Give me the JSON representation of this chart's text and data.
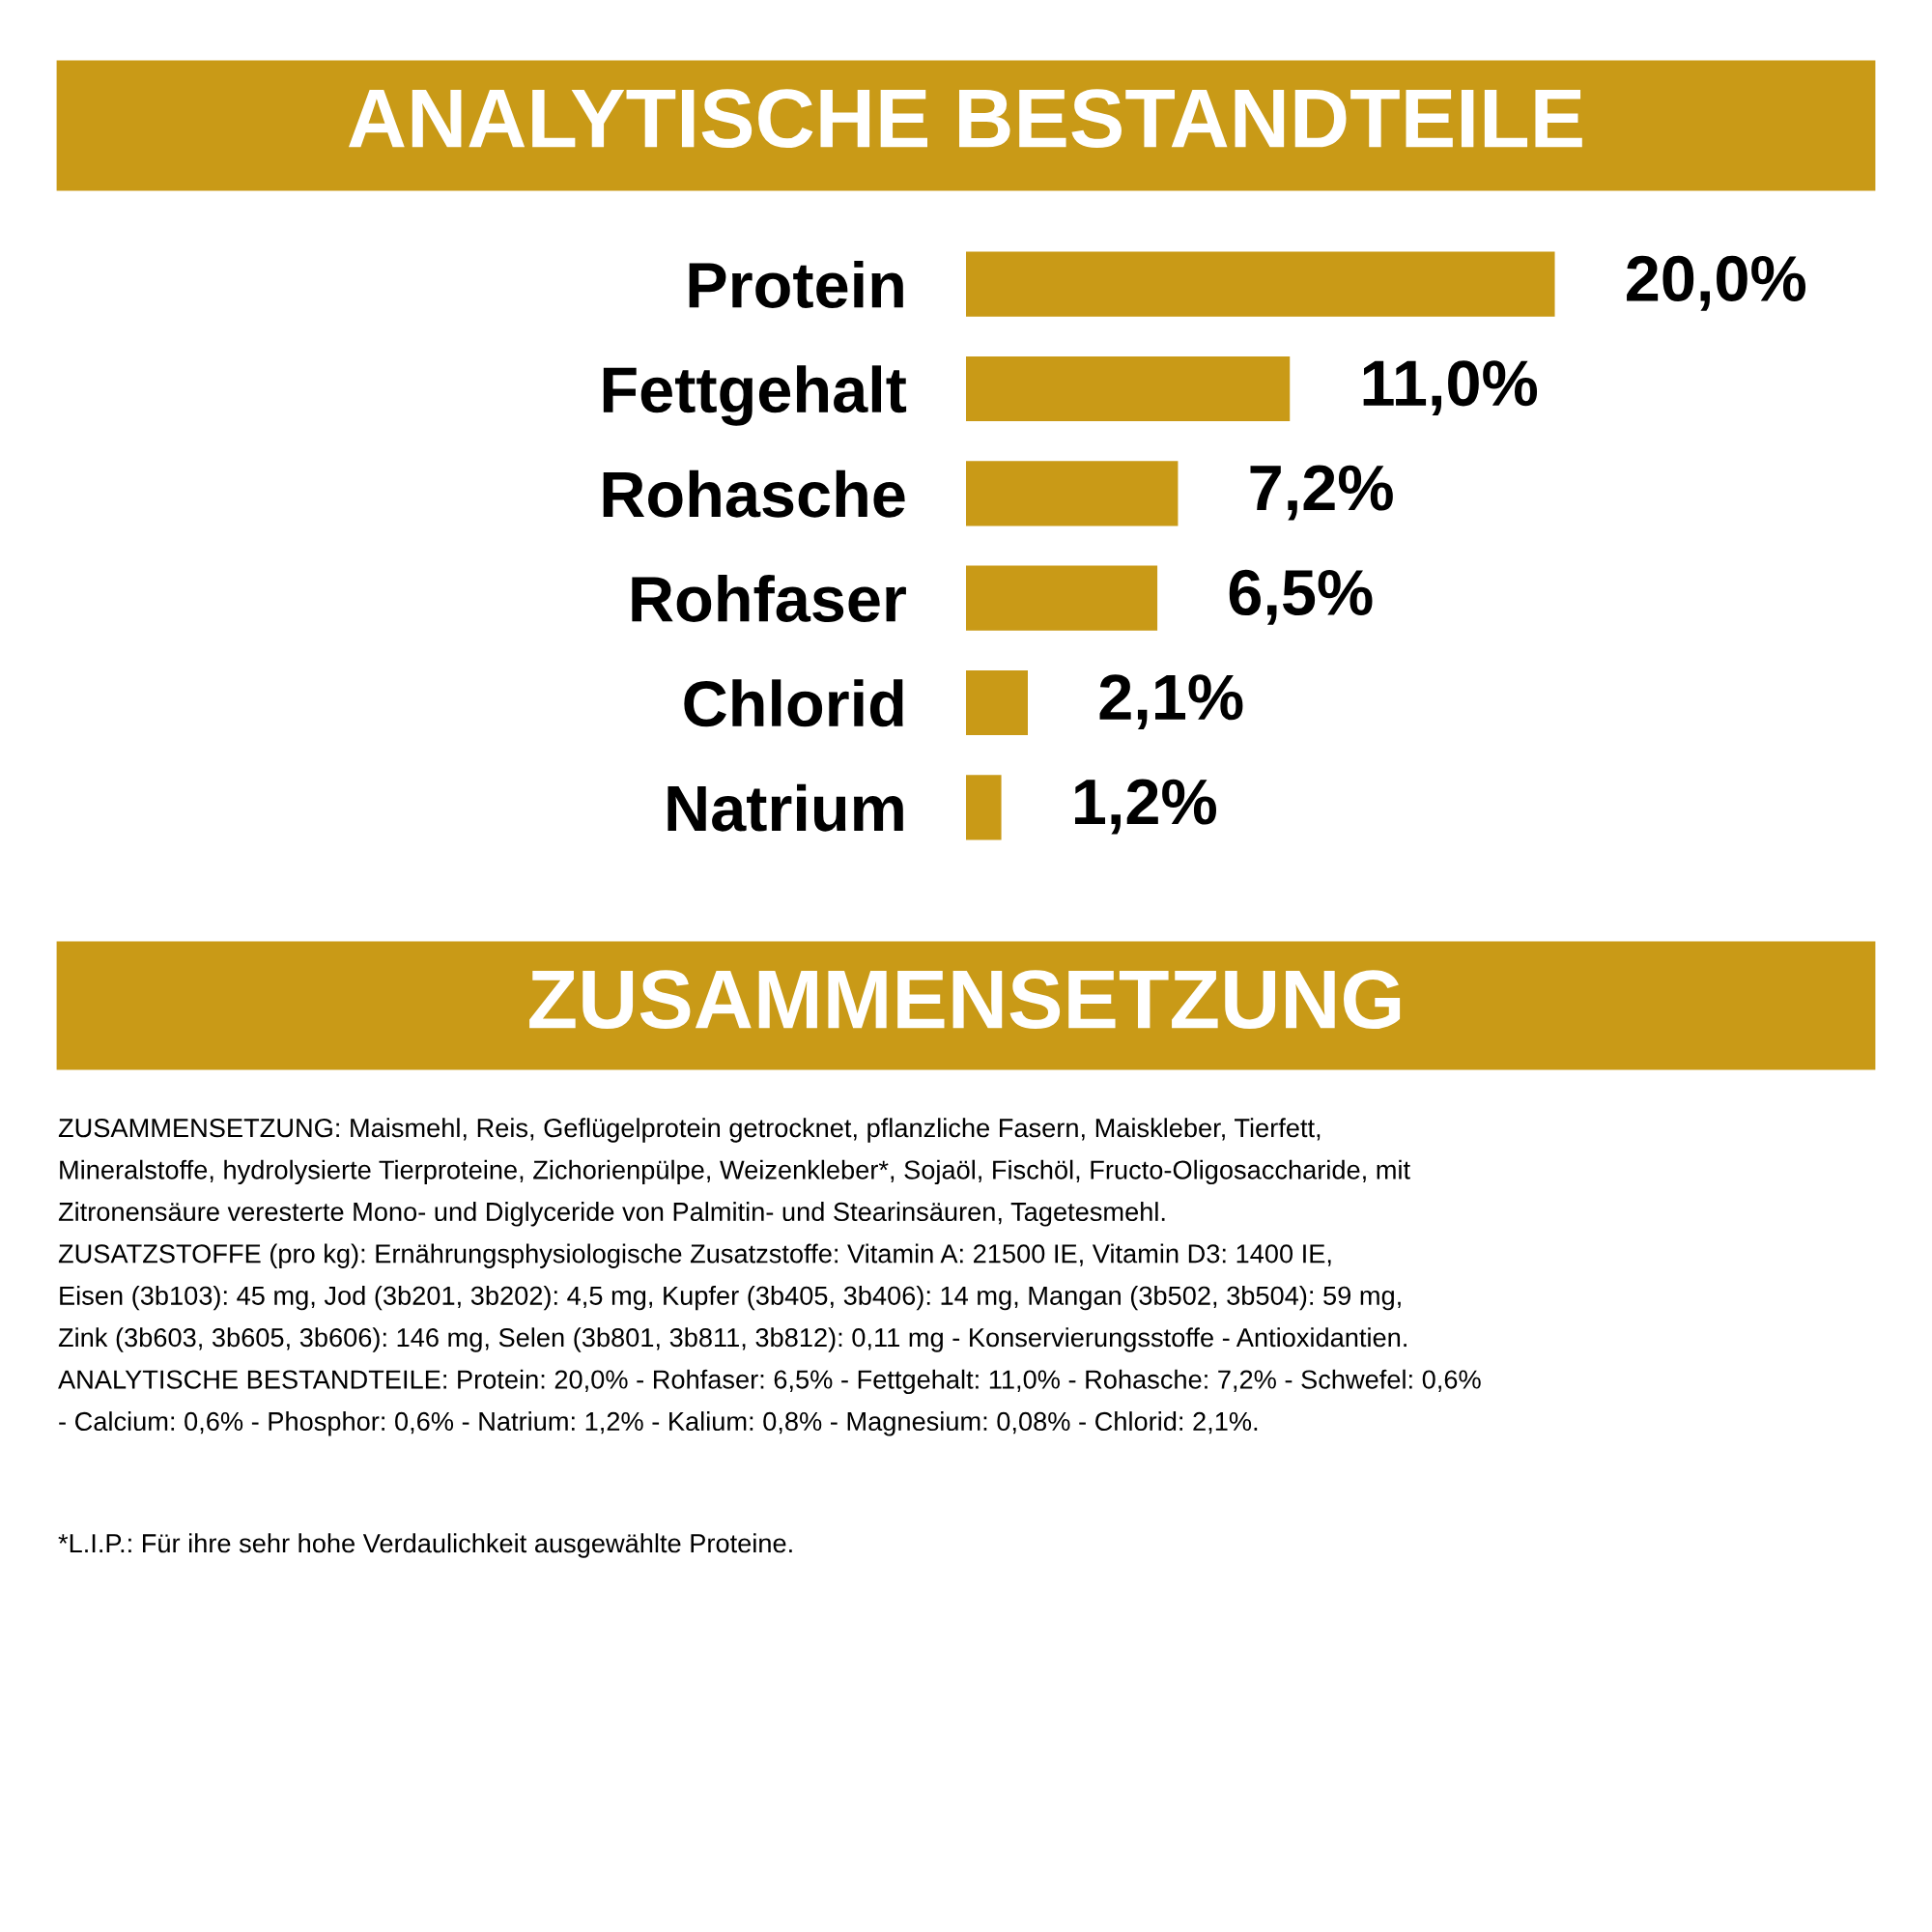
{
  "chart_data": {
    "type": "bar",
    "orientation": "horizontal",
    "title": "ANALYTISCHE BESTANDTEILE",
    "categories": [
      "Protein",
      "Fettgehalt",
      "Rohasche",
      "Rohfaser",
      "Chlorid",
      "Natrium"
    ],
    "values": [
      20.0,
      11.0,
      7.2,
      6.5,
      2.1,
      1.2
    ],
    "value_labels": [
      "20,0%",
      "11,0%",
      "7,2%",
      "6,5%",
      "2,1%",
      "1,2%"
    ],
    "color": "#c99a17",
    "annotations": [
      "ZUSAMMENSETZUNG",
      "ZUSAMMENSETZUNG: Maismehl, Reis, Geflügelprotein getrocknet, pflanzliche Fasern, Maiskleber, Tierfett,",
      "Mineralstoffe, hydrolysierte Tierproteine, Zichorienpülpe, Weizenkleber*, Sojaöl, Fischöl, Fructo-Oligosaccharide, mit",
      "Zitronensäure veresterte Mono- und Diglyceride von Palmitin- und Stearinsäuren, Tagetesmehl.",
      "ZUSATZSTOFFE (pro kg): Ernährungsphysiologische Zusatzstoffe: Vitamin A: 21500 IE, Vitamin D3: 1400 IE,",
      "Eisen (3b103): 45 mg, Jod (3b201, 3b202): 4,5 mg, Kupfer (3b405, 3b406): 14 mg, Mangan (3b502, 3b504): 59 mg,",
      "Zink (3b603, 3b605, 3b606): 146 mg, Selen (3b801, 3b811, 3b812): 0,11 mg - Konservierungsstoffe - Antioxidantien.",
      "ANALYTISCHE BESTANDTEILE: Protein: 20,0% - Rohfaser: 6,5% - Fettgehalt: 11,0% - Rohasche: 7,2% - Schwefel: 0,6%",
      "- Calcium: 0,6% - Phosphor: 0,6% - Natrium: 1,2% - Kalium: 0,8% - Magnesium: 0,08% - Chlorid: 2,1%.",
      "*L.I.P.: Für ihre sehr hohe Verdaulichkeit ausgewählte Proteine."
    ],
    "grid": false,
    "legend": false,
    "tick_labels": "y"
  }
}
